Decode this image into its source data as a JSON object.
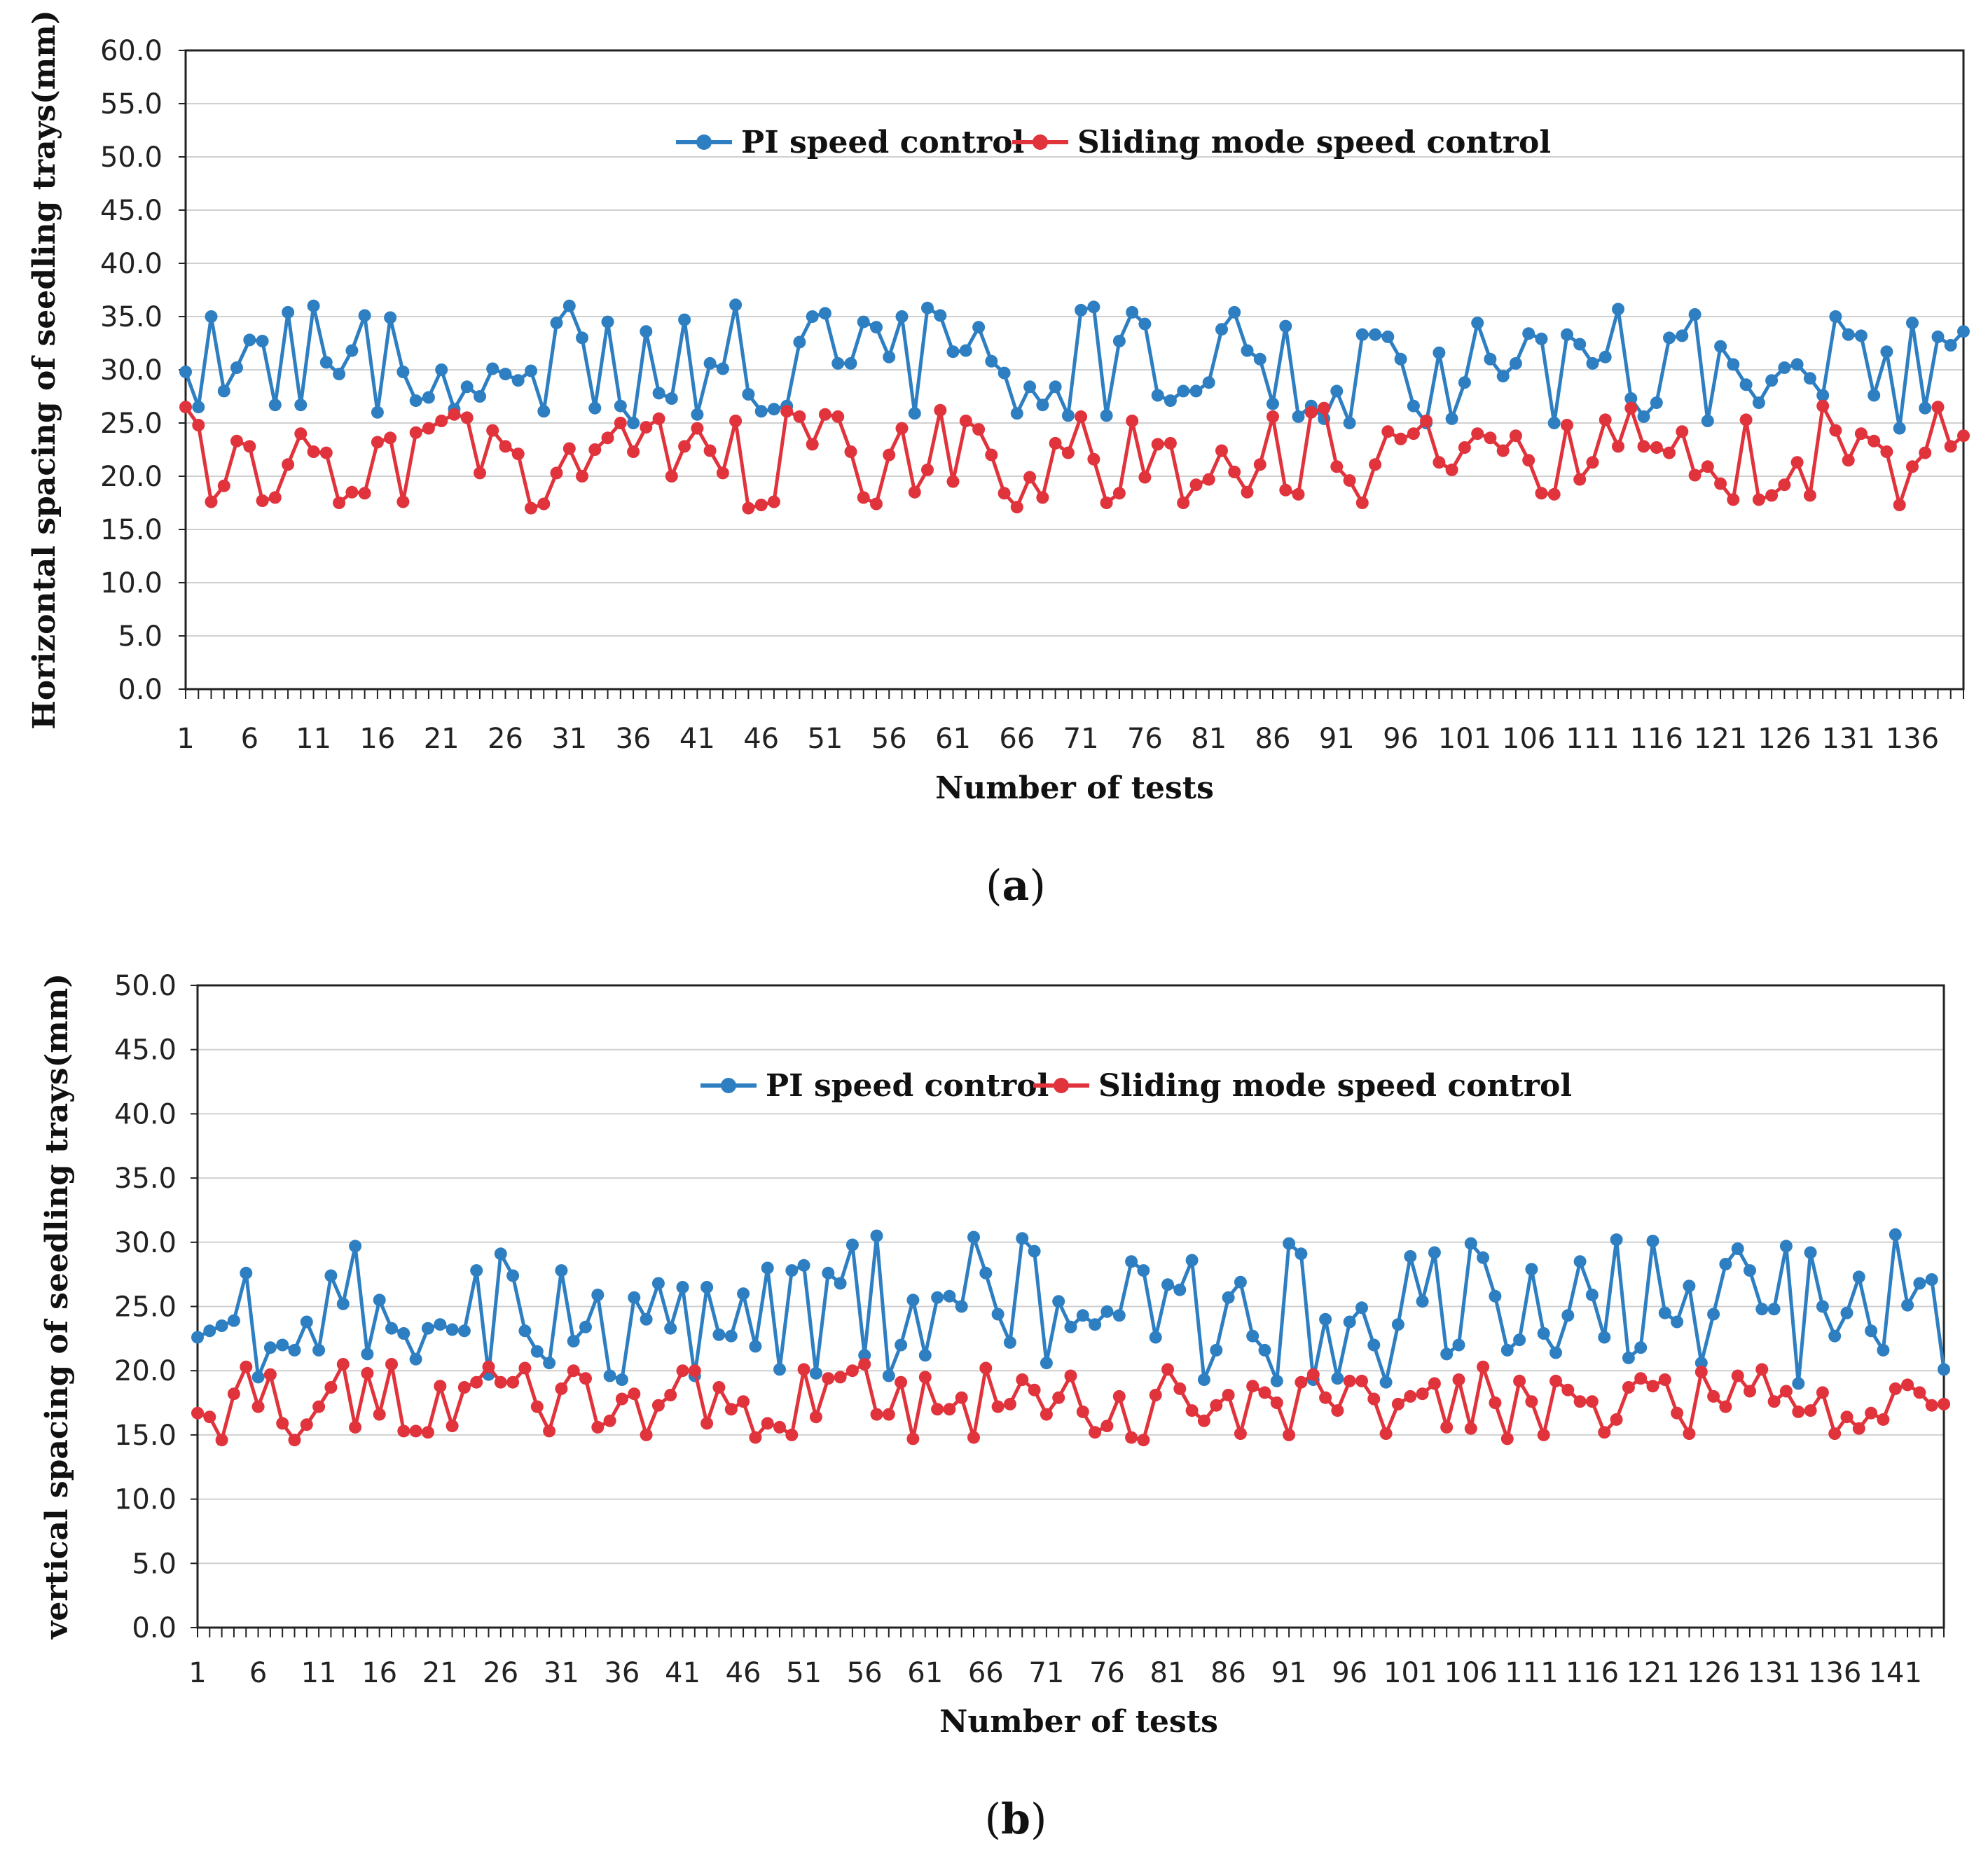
{
  "colors": {
    "pi": "#2e7fc2",
    "smc": "#e0333c",
    "grid": "#d0d0d0",
    "axis": "#222222"
  },
  "chart_data": [
    {
      "type": "line",
      "caption_label": "a",
      "title": "",
      "xlabel": "Number of tests",
      "ylabel": "Horizontal spacing of seedling trays(mm)",
      "ylim": [
        0,
        60
      ],
      "yticks": [
        "0.0",
        "5.0",
        "10.0",
        "15.0",
        "20.0",
        "25.0",
        "30.0",
        "35.0",
        "40.0",
        "45.0",
        "50.0",
        "55.0",
        "60.0"
      ],
      "x_count": 140,
      "x_tick_labels": [
        "1",
        "6",
        "11",
        "16",
        "21",
        "26",
        "31",
        "36",
        "41",
        "46",
        "51",
        "56",
        "61",
        "66",
        "71",
        "76",
        "81",
        "86",
        "91",
        "96",
        "101",
        "106",
        "111",
        "116",
        "121",
        "126",
        "131",
        "136"
      ],
      "legend": "top-center",
      "series": [
        {
          "name": "PI speed control",
          "color_key": "pi",
          "values": [
            29.8,
            26.5,
            35.0,
            28.0,
            30.2,
            32.8,
            32.7,
            26.7,
            35.4,
            26.7,
            36.0,
            30.7,
            29.6,
            31.8,
            35.1,
            26.0,
            34.9,
            29.8,
            27.1,
            27.4,
            30.0,
            26.3,
            28.4,
            27.5,
            30.1,
            29.6,
            29.0,
            29.9,
            26.1,
            34.4,
            36.0,
            33.0,
            26.4,
            34.5,
            26.6,
            25.0,
            33.6,
            27.8,
            27.3,
            34.7,
            25.8,
            30.6,
            30.1,
            36.1,
            27.7,
            26.1,
            26.3,
            26.6,
            32.6,
            35.0,
            35.3,
            30.6,
            30.6,
            34.5,
            34.0,
            31.2,
            35.0,
            25.9,
            35.8,
            35.1,
            31.7,
            31.8,
            34.0,
            30.8,
            29.7,
            25.9,
            28.4,
            26.7,
            28.4,
            25.7,
            35.6,
            35.9,
            25.7,
            32.7,
            35.4,
            34.3,
            27.6,
            27.1,
            28.0,
            28.0,
            28.8,
            33.8,
            35.4,
            31.8,
            31.0,
            26.8,
            34.1,
            25.6,
            26.6,
            25.4,
            28.0,
            25.0,
            33.3,
            33.3,
            33.1,
            31.0,
            26.6,
            25.0,
            31.6,
            25.4,
            28.8,
            34.4,
            31.0,
            29.4,
            30.6,
            33.4,
            32.9,
            25.0,
            33.3,
            32.4,
            30.6,
            31.2,
            35.7,
            27.3,
            25.6,
            26.9,
            33.0,
            33.2,
            35.2,
            25.2,
            32.2,
            30.5,
            28.6,
            26.9,
            29.0,
            30.2,
            30.5,
            29.2,
            27.6,
            35.0,
            33.3,
            33.2,
            27.6,
            31.7,
            24.5,
            34.4,
            26.4,
            33.1,
            32.3,
            33.6
          ]
        },
        {
          "name": "Sliding mode speed control",
          "color_key": "smc",
          "values": [
            26.5,
            24.8,
            17.6,
            19.1,
            23.3,
            22.8,
            17.7,
            18.0,
            21.1,
            24.0,
            22.3,
            22.2,
            17.5,
            18.5,
            18.4,
            23.2,
            23.6,
            17.6,
            24.1,
            24.5,
            25.2,
            25.8,
            25.5,
            20.3,
            24.3,
            22.8,
            22.1,
            17.0,
            17.4,
            20.3,
            22.6,
            20.0,
            22.5,
            23.6,
            25.0,
            22.3,
            24.6,
            25.4,
            20.0,
            22.8,
            24.5,
            22.4,
            20.3,
            25.2,
            17.0,
            17.3,
            17.6,
            26.1,
            25.6,
            23.0,
            25.8,
            25.6,
            22.3,
            18.0,
            17.4,
            22.0,
            24.5,
            18.5,
            20.6,
            26.2,
            19.5,
            25.2,
            24.4,
            22.0,
            18.4,
            17.1,
            19.9,
            18.0,
            23.1,
            22.2,
            25.6,
            21.6,
            17.5,
            18.4,
            25.2,
            19.9,
            23.0,
            23.1,
            17.5,
            19.2,
            19.7,
            22.4,
            20.4,
            18.5,
            21.1,
            25.6,
            18.7,
            18.3,
            26.0,
            26.4,
            20.9,
            19.6,
            17.5,
            21.1,
            24.2,
            23.5,
            24.0,
            25.2,
            21.3,
            20.6,
            22.7,
            24.0,
            23.6,
            22.4,
            23.8,
            21.5,
            18.4,
            18.3,
            24.8,
            19.7,
            21.3,
            25.3,
            22.8,
            26.4,
            22.8,
            22.7,
            22.2,
            24.2,
            20.1,
            20.9,
            19.3,
            17.8,
            25.3,
            17.8,
            18.2,
            19.2,
            21.3,
            18.2,
            26.6,
            24.3,
            21.5,
            24.0,
            23.3,
            22.3,
            17.3,
            20.9,
            22.2,
            26.5,
            22.8,
            23.8
          ]
        }
      ]
    },
    {
      "type": "line",
      "caption_label": "b",
      "title": "",
      "xlabel": "Number of tests",
      "ylabel": "vertical spacing of seedling trays(mm)",
      "ylim": [
        0,
        50
      ],
      "yticks": [
        "0.0",
        "5.0",
        "10.0",
        "15.0",
        "20.0",
        "25.0",
        "30.0",
        "35.0",
        "40.0",
        "45.0",
        "50.0"
      ],
      "x_count": 145,
      "x_tick_labels": [
        "1",
        "6",
        "11",
        "16",
        "21",
        "26",
        "31",
        "36",
        "41",
        "46",
        "51",
        "56",
        "61",
        "66",
        "71",
        "76",
        "81",
        "86",
        "91",
        "96",
        "101",
        "106",
        "111",
        "116",
        "121",
        "126",
        "131",
        "136",
        "141"
      ],
      "legend": "top-center",
      "series": [
        {
          "name": "PI speed control",
          "color_key": "pi",
          "values": [
            22.6,
            23.1,
            23.5,
            23.9,
            27.6,
            19.5,
            21.8,
            22.0,
            21.6,
            23.8,
            21.6,
            27.4,
            25.2,
            29.7,
            21.3,
            25.5,
            23.3,
            22.9,
            20.9,
            23.3,
            23.6,
            23.2,
            23.1,
            27.8,
            19.7,
            29.1,
            27.4,
            23.1,
            21.5,
            20.6,
            27.8,
            22.3,
            23.4,
            25.9,
            19.6,
            19.3,
            25.7,
            24.0,
            26.8,
            23.3,
            26.5,
            19.6,
            26.5,
            22.8,
            22.7,
            26.0,
            21.9,
            28.0,
            20.1,
            27.8,
            28.2,
            19.8,
            27.6,
            26.8,
            29.8,
            21.2,
            30.5,
            19.6,
            22.0,
            25.5,
            21.2,
            25.7,
            25.8,
            25.0,
            30.4,
            27.6,
            24.4,
            22.2,
            30.3,
            29.3,
            20.6,
            25.4,
            23.4,
            24.3,
            23.6,
            24.6,
            24.3,
            28.5,
            27.8,
            22.6,
            26.7,
            26.3,
            28.6,
            19.3,
            21.6,
            25.7,
            26.9,
            22.7,
            21.6,
            19.2,
            29.9,
            29.1,
            19.3,
            24.0,
            19.4,
            23.8,
            24.9,
            22.0,
            19.1,
            23.6,
            28.9,
            25.4,
            29.2,
            21.3,
            22.0,
            29.9,
            28.8,
            25.8,
            21.6,
            22.4,
            27.9,
            22.9,
            21.4,
            24.3,
            28.5,
            25.9,
            22.6,
            30.2,
            21.0,
            21.8,
            30.1,
            24.5,
            23.8,
            26.6,
            20.6,
            24.4,
            28.3,
            29.5,
            27.8,
            24.8,
            24.8,
            29.7,
            19.0,
            29.2,
            25.0,
            22.7,
            24.5,
            27.3,
            23.1,
            21.6,
            30.6,
            25.1,
            26.8,
            27.1,
            20.1
          ]
        },
        {
          "name": "Sliding mode speed control",
          "color_key": "smc",
          "values": [
            16.7,
            16.4,
            14.6,
            18.2,
            20.3,
            17.2,
            19.7,
            15.9,
            14.6,
            15.8,
            17.2,
            18.7,
            20.5,
            15.6,
            19.8,
            16.6,
            20.5,
            15.3,
            15.3,
            15.2,
            18.8,
            15.7,
            18.7,
            19.1,
            20.3,
            19.1,
            19.1,
            20.2,
            17.2,
            15.3,
            18.6,
            20.0,
            19.4,
            15.6,
            16.1,
            17.8,
            18.2,
            15.0,
            17.3,
            18.1,
            20.0,
            20.0,
            15.9,
            18.7,
            17.0,
            17.6,
            14.8,
            15.9,
            15.6,
            15.0,
            20.1,
            16.4,
            19.4,
            19.5,
            20.0,
            20.5,
            16.6,
            16.6,
            19.1,
            14.7,
            19.5,
            17.0,
            17.0,
            17.9,
            14.8,
            20.2,
            17.2,
            17.4,
            19.3,
            18.5,
            16.6,
            17.9,
            19.6,
            16.8,
            15.2,
            15.7,
            18.0,
            14.8,
            14.6,
            18.1,
            20.1,
            18.6,
            16.9,
            16.1,
            17.3,
            18.1,
            15.1,
            18.8,
            18.3,
            17.5,
            15.0,
            19.1,
            19.7,
            17.9,
            16.9,
            19.2,
            19.2,
            17.8,
            15.1,
            17.4,
            18.0,
            18.2,
            19.0,
            15.6,
            19.3,
            15.5,
            20.3,
            17.5,
            14.7,
            19.2,
            17.6,
            15.0,
            19.2,
            18.5,
            17.6,
            17.6,
            15.2,
            16.2,
            18.7,
            19.4,
            18.8,
            19.3,
            16.7,
            15.1,
            19.9,
            18.0,
            17.2,
            19.6,
            18.4,
            20.1,
            17.6,
            18.4,
            16.8,
            16.9,
            18.3,
            15.1,
            16.4,
            15.5,
            16.7,
            16.2,
            18.6,
            18.9,
            18.3,
            17.3,
            17.4
          ]
        }
      ]
    }
  ]
}
